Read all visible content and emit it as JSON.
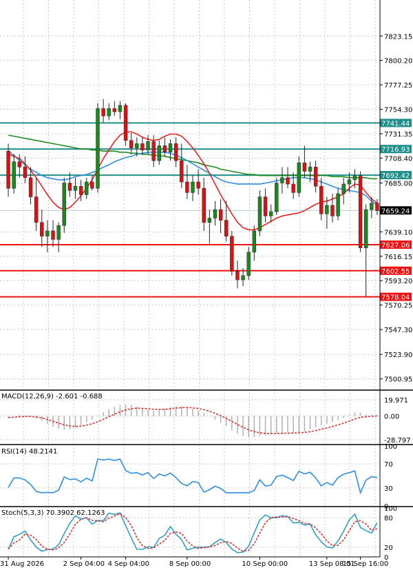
{
  "chart_data": {
    "type": "candlestick",
    "price_panel": {
      "y_ticks": [
        "7823.15",
        "7800.20",
        "7777.25",
        "7754.30",
        "7731.35",
        "7708.40",
        "7685.00",
        "7639.10",
        "7616.15",
        "7593.20",
        "7570.25",
        "7547.30",
        "7523.90",
        "7500.95"
      ],
      "y_values": [
        7823.15,
        7800.2,
        7777.25,
        7754.3,
        7731.35,
        7708.4,
        7685.0,
        7639.1,
        7616.15,
        7593.2,
        7570.25,
        7547.3,
        7523.9,
        7500.95
      ],
      "ylim": [
        7491.0,
        7857.0
      ],
      "current_price": {
        "label": "7659.24",
        "value": 7659.24,
        "color": "#000000"
      },
      "horizontal_levels": [
        {
          "label": "7741.44",
          "value": 7741.44,
          "color": "#1f8f8a"
        },
        {
          "label": "7716.93",
          "value": 7716.93,
          "color": "#1f8f8a"
        },
        {
          "label": "7692.42",
          "value": 7692.42,
          "color": "#1f8f8a"
        },
        {
          "label": "7627.06",
          "value": 7627.06,
          "color": "#ee1111"
        },
        {
          "label": "7602.55",
          "value": 7602.55,
          "color": "#ee1111"
        },
        {
          "label": "7578.04",
          "value": 7578.04,
          "color": "#ee1111"
        }
      ],
      "candles": [
        {
          "o": 7715,
          "h": 7722,
          "l": 7672,
          "c": 7680
        },
        {
          "o": 7680,
          "h": 7712,
          "l": 7675,
          "c": 7705
        },
        {
          "o": 7705,
          "h": 7712,
          "l": 7690,
          "c": 7700
        },
        {
          "o": 7700,
          "h": 7710,
          "l": 7685,
          "c": 7690
        },
        {
          "o": 7690,
          "h": 7700,
          "l": 7665,
          "c": 7672
        },
        {
          "o": 7672,
          "h": 7690,
          "l": 7640,
          "c": 7648
        },
        {
          "o": 7648,
          "h": 7660,
          "l": 7625,
          "c": 7635
        },
        {
          "o": 7635,
          "h": 7650,
          "l": 7620,
          "c": 7640
        },
        {
          "o": 7640,
          "h": 7650,
          "l": 7625,
          "c": 7632
        },
        {
          "o": 7632,
          "h": 7648,
          "l": 7620,
          "c": 7645
        },
        {
          "o": 7645,
          "h": 7690,
          "l": 7638,
          "c": 7685
        },
        {
          "o": 7685,
          "h": 7695,
          "l": 7672,
          "c": 7678
        },
        {
          "o": 7678,
          "h": 7690,
          "l": 7670,
          "c": 7682
        },
        {
          "o": 7682,
          "h": 7688,
          "l": 7668,
          "c": 7674
        },
        {
          "o": 7674,
          "h": 7690,
          "l": 7670,
          "c": 7686
        },
        {
          "o": 7686,
          "h": 7692,
          "l": 7678,
          "c": 7680
        },
        {
          "o": 7680,
          "h": 7760,
          "l": 7676,
          "c": 7755
        },
        {
          "o": 7755,
          "h": 7764,
          "l": 7742,
          "c": 7748
        },
        {
          "o": 7748,
          "h": 7760,
          "l": 7744,
          "c": 7755
        },
        {
          "o": 7755,
          "h": 7762,
          "l": 7748,
          "c": 7752
        },
        {
          "o": 7752,
          "h": 7762,
          "l": 7745,
          "c": 7758
        },
        {
          "o": 7758,
          "h": 7760,
          "l": 7720,
          "c": 7725
        },
        {
          "o": 7725,
          "h": 7732,
          "l": 7712,
          "c": 7718
        },
        {
          "o": 7718,
          "h": 7728,
          "l": 7710,
          "c": 7722
        },
        {
          "o": 7722,
          "h": 7728,
          "l": 7712,
          "c": 7716
        },
        {
          "o": 7716,
          "h": 7730,
          "l": 7712,
          "c": 7724
        },
        {
          "o": 7724,
          "h": 7730,
          "l": 7700,
          "c": 7706
        },
        {
          "o": 7706,
          "h": 7725,
          "l": 7702,
          "c": 7720
        },
        {
          "o": 7720,
          "h": 7728,
          "l": 7710,
          "c": 7714
        },
        {
          "o": 7714,
          "h": 7726,
          "l": 7706,
          "c": 7722
        },
        {
          "o": 7722,
          "h": 7728,
          "l": 7700,
          "c": 7706
        },
        {
          "o": 7706,
          "h": 7722,
          "l": 7680,
          "c": 7686
        },
        {
          "o": 7686,
          "h": 7702,
          "l": 7670,
          "c": 7676
        },
        {
          "o": 7676,
          "h": 7692,
          "l": 7668,
          "c": 7686
        },
        {
          "o": 7686,
          "h": 7698,
          "l": 7674,
          "c": 7680
        },
        {
          "o": 7680,
          "h": 7690,
          "l": 7640,
          "c": 7648
        },
        {
          "o": 7648,
          "h": 7660,
          "l": 7628,
          "c": 7652
        },
        {
          "o": 7652,
          "h": 7668,
          "l": 7645,
          "c": 7660
        },
        {
          "o": 7660,
          "h": 7670,
          "l": 7638,
          "c": 7650
        },
        {
          "o": 7650,
          "h": 7668,
          "l": 7630,
          "c": 7635
        },
        {
          "o": 7635,
          "h": 7640,
          "l": 7598,
          "c": 7602
        },
        {
          "o": 7602,
          "h": 7612,
          "l": 7586,
          "c": 7594
        },
        {
          "o": 7594,
          "h": 7605,
          "l": 7588,
          "c": 7598
        },
        {
          "o": 7598,
          "h": 7625,
          "l": 7594,
          "c": 7620
        },
        {
          "o": 7620,
          "h": 7645,
          "l": 7612,
          "c": 7640
        },
        {
          "o": 7640,
          "h": 7678,
          "l": 7635,
          "c": 7672
        },
        {
          "o": 7672,
          "h": 7680,
          "l": 7648,
          "c": 7654
        },
        {
          "o": 7654,
          "h": 7665,
          "l": 7648,
          "c": 7658
        },
        {
          "o": 7658,
          "h": 7690,
          "l": 7655,
          "c": 7685
        },
        {
          "o": 7685,
          "h": 7700,
          "l": 7675,
          "c": 7690
        },
        {
          "o": 7690,
          "h": 7700,
          "l": 7680,
          "c": 7684
        },
        {
          "o": 7684,
          "h": 7695,
          "l": 7670,
          "c": 7676
        },
        {
          "o": 7676,
          "h": 7710,
          "l": 7672,
          "c": 7704
        },
        {
          "o": 7704,
          "h": 7720,
          "l": 7690,
          "c": 7696
        },
        {
          "o": 7696,
          "h": 7705,
          "l": 7686,
          "c": 7700
        },
        {
          "o": 7700,
          "h": 7706,
          "l": 7676,
          "c": 7682
        },
        {
          "o": 7682,
          "h": 7690,
          "l": 7650,
          "c": 7656
        },
        {
          "o": 7656,
          "h": 7672,
          "l": 7642,
          "c": 7664
        },
        {
          "o": 7664,
          "h": 7675,
          "l": 7648,
          "c": 7654
        },
        {
          "o": 7654,
          "h": 7680,
          "l": 7650,
          "c": 7675
        },
        {
          "o": 7675,
          "h": 7690,
          "l": 7665,
          "c": 7684
        },
        {
          "o": 7684,
          "h": 7695,
          "l": 7676,
          "c": 7688
        },
        {
          "o": 7688,
          "h": 7698,
          "l": 7680,
          "c": 7692
        },
        {
          "o": 7692,
          "h": 7696,
          "l": 7620,
          "c": 7624
        },
        {
          "o": 7624,
          "h": 7665,
          "l": 7578,
          "c": 7660
        },
        {
          "o": 7660,
          "h": 7672,
          "l": 7652,
          "c": 7666
        },
        {
          "o": 7666,
          "h": 7670,
          "l": 7655,
          "c": 7659
        }
      ],
      "ma_red": [
        7712,
        7710,
        7708,
        7703,
        7697,
        7690,
        7682,
        7674,
        7667,
        7662,
        7660,
        7662,
        7667,
        7673,
        7680,
        7688,
        7698,
        7708,
        7716,
        7724,
        7730,
        7733,
        7733,
        7731,
        7728,
        7726,
        7725,
        7726,
        7729,
        7731,
        7731,
        7729,
        7724,
        7718,
        7711,
        7703,
        7694,
        7684,
        7674,
        7665,
        7656,
        7648,
        7643,
        7641,
        7641,
        7643,
        7646,
        7649,
        7652,
        7654,
        7655,
        7656,
        7657,
        7659,
        7662,
        7665,
        7667,
        7668,
        7670,
        7672,
        7675,
        7680,
        7684,
        7683,
        7676,
        7670,
        7666
      ],
      "ma_blue": [
        7715,
        7711,
        7706,
        7702,
        7698,
        7695,
        7692,
        7690,
        7689,
        7688,
        7688,
        7689,
        7691,
        7692,
        7693,
        7695,
        7697,
        7700,
        7702,
        7705,
        7707,
        7709,
        7710,
        7712,
        7713,
        7714,
        7714,
        7714,
        7714,
        7713,
        7711,
        7709,
        7706,
        7703,
        7700,
        7697,
        7694,
        7691,
        7688,
        7686,
        7685,
        7684,
        7684,
        7684,
        7684,
        7684,
        7685,
        7686,
        7687,
        7688,
        7689,
        7690,
        7690,
        7690,
        7689,
        7688,
        7686,
        7684,
        7682,
        7680,
        7679,
        7678,
        7677,
        7676,
        7673,
        7668,
        7664
      ],
      "ma_green": [
        7730,
        7729,
        7728,
        7727,
        7726,
        7725,
        7724,
        7723,
        7722,
        7721,
        7720,
        7719,
        7718,
        7717,
        7717,
        7716,
        7716,
        7715,
        7715,
        7715,
        7714,
        7714,
        7713,
        7713,
        7712,
        7712,
        7711,
        7711,
        7710,
        7709,
        7708,
        7707,
        7706,
        7705,
        7704,
        7702,
        7701,
        7700,
        7698,
        7697,
        7696,
        7695,
        7694,
        7693,
        7693,
        7692,
        7692,
        7692,
        7692,
        7692,
        7692,
        7692,
        7692,
        7692,
        7692,
        7692,
        7692,
        7692,
        7691,
        7691,
        7691,
        7690,
        7690,
        7690,
        7690,
        7689,
        7689
      ]
    },
    "macd_panel": {
      "label": "MACD(12,26,9) -2.601 -0.688",
      "y_ticks": [
        "19.971",
        "0.00",
        "-28.797"
      ],
      "y_values": [
        19.971,
        0,
        -28.797
      ],
      "ylim": [
        -34,
        30
      ]
    },
    "rsi_panel": {
      "label": "RSI(14) 48.2141",
      "y_ticks": [
        "100",
        "70",
        "30",
        "0"
      ],
      "y_values": [
        100,
        70,
        30,
        0
      ],
      "ylim": [
        0,
        100
      ]
    },
    "stoch_panel": {
      "label": "Stoch(5,3,3) 70.3902 62.1263",
      "y_ticks": [
        "100",
        "80",
        "20",
        "0"
      ],
      "y_values": [
        100,
        80,
        20,
        0
      ],
      "ylim": [
        0,
        100
      ]
    },
    "x_ticks": [
      "31 Aug 2026",
      "2 Sep 04:00",
      "4 Sep 04:00",
      "8 Sep 00:00",
      "10 Sep 00:00",
      "13 Sep 08:01",
      "15 Sep 16:00"
    ],
    "x_tick_index": [
      0,
      13,
      21,
      32,
      45,
      57,
      63
    ],
    "colors": {
      "up": "#1a8a1a",
      "down": "#dd1111",
      "ma_red": "#ee2222",
      "ma_blue": "#2f8fe0",
      "ma_green": "#1e8a1e",
      "grid": "#c8c8c8",
      "teal": "#1f8f8a"
    }
  }
}
